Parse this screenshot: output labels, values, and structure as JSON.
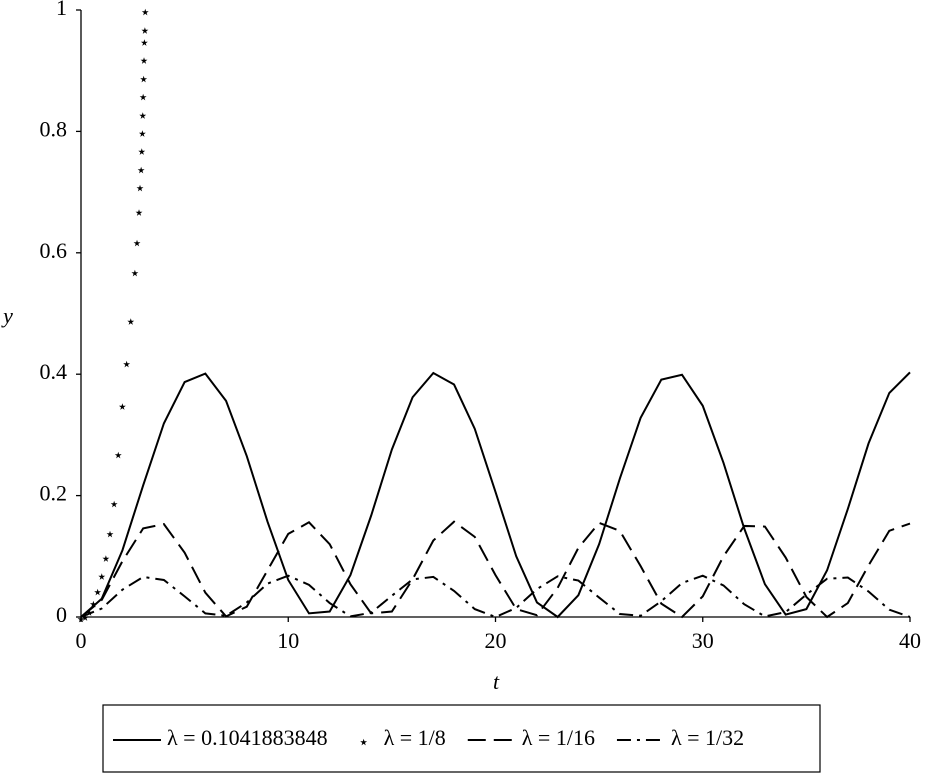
{
  "chart_data": {
    "type": "line",
    "xlabel": "t",
    "ylabel": "y",
    "xlim": [
      0,
      40
    ],
    "ylim": [
      0,
      1
    ],
    "xticks": [
      0,
      10,
      20,
      30,
      40
    ],
    "yticks": [
      0,
      0.2,
      0.4,
      0.6,
      0.8,
      1
    ],
    "legend": "bottom",
    "series": [
      {
        "name": "λ = 0.1041883848",
        "color": "#000000",
        "style": "solid",
        "x": [
          0,
          1,
          2,
          3,
          4,
          5,
          6,
          7,
          8,
          9,
          10,
          11,
          12,
          13,
          14,
          15,
          16,
          17,
          18,
          19,
          20,
          21,
          22,
          23,
          24,
          25,
          26,
          27,
          28,
          29,
          30,
          31,
          32,
          33,
          34,
          35,
          36,
          37,
          38,
          39,
          40
        ],
        "values": [
          0,
          0.03,
          0.11,
          0.217,
          0.319,
          0.387,
          0.401,
          0.356,
          0.265,
          0.157,
          0.061,
          0.006,
          0.009,
          0.069,
          0.167,
          0.276,
          0.362,
          0.402,
          0.383,
          0.31,
          0.206,
          0.1,
          0.024,
          0,
          0.036,
          0.12,
          0.228,
          0.328,
          0.391,
          0.399,
          0.348,
          0.254,
          0.146,
          0.054,
          0.004,
          0.013,
          0.077,
          0.178,
          0.286,
          0.369,
          0.403
        ]
      },
      {
        "name": "λ = 1/8",
        "color": "#000000",
        "style": "star",
        "x": [
          0,
          0.2,
          0.4,
          0.6,
          0.8,
          1.0,
          1.2,
          1.4,
          1.6,
          1.8,
          2.0,
          2.2,
          2.4,
          2.6,
          2.7,
          2.8,
          2.85,
          2.9,
          2.93,
          2.96,
          2.98,
          3.0,
          3.02,
          3.04,
          3.06,
          3.08,
          3.1
        ],
        "values": [
          0,
          0.003,
          0.011,
          0.025,
          0.045,
          0.07,
          0.1,
          0.14,
          0.19,
          0.27,
          0.35,
          0.42,
          0.49,
          0.57,
          0.62,
          0.67,
          0.71,
          0.74,
          0.77,
          0.8,
          0.83,
          0.86,
          0.89,
          0.92,
          0.95,
          0.97,
          1.0
        ]
      },
      {
        "name": "λ = 1/16",
        "color": "#000000",
        "style": "dashed",
        "x": [
          0,
          1,
          2,
          3,
          4,
          5,
          6,
          7,
          8,
          9,
          10,
          11,
          12,
          13,
          14,
          15,
          16,
          17,
          18,
          19,
          20,
          21,
          22,
          23,
          24,
          25,
          26,
          27,
          28,
          29,
          30,
          31,
          32,
          33,
          34,
          35,
          36,
          37,
          38,
          39,
          40
        ],
        "values": [
          0,
          0.028,
          0.092,
          0.146,
          0.153,
          0.106,
          0.04,
          0.001,
          0.017,
          0.077,
          0.137,
          0.156,
          0.12,
          0.054,
          0.006,
          0.009,
          0.062,
          0.126,
          0.157,
          0.132,
          0.069,
          0.013,
          0.003,
          0.048,
          0.114,
          0.155,
          0.142,
          0.084,
          0.022,
          0,
          0.034,
          0.1,
          0.15,
          0.149,
          0.098,
          0.033,
          0,
          0.023,
          0.085,
          0.142,
          0.154
        ]
      },
      {
        "name": "λ = 1/32",
        "color": "#000000",
        "style": "dashdot",
        "x": [
          0,
          1,
          2,
          3,
          4,
          5,
          6,
          7,
          8,
          9,
          10,
          11,
          12,
          13,
          14,
          15,
          16,
          17,
          18,
          19,
          20,
          21,
          22,
          23,
          24,
          25,
          26,
          27,
          28,
          29,
          30,
          31,
          32,
          33,
          34,
          35,
          36,
          37,
          38,
          39,
          40
        ],
        "values": [
          0,
          0.014,
          0.045,
          0.066,
          0.061,
          0.034,
          0.006,
          0.002,
          0.024,
          0.055,
          0.068,
          0.053,
          0.023,
          0.001,
          0.007,
          0.035,
          0.062,
          0.066,
          0.043,
          0.013,
          0,
          0.015,
          0.046,
          0.067,
          0.06,
          0.032,
          0.005,
          0.002,
          0.026,
          0.056,
          0.068,
          0.052,
          0.021,
          0.001,
          0.008,
          0.037,
          0.063,
          0.065,
          0.042,
          0.012,
          0
        ]
      }
    ]
  }
}
